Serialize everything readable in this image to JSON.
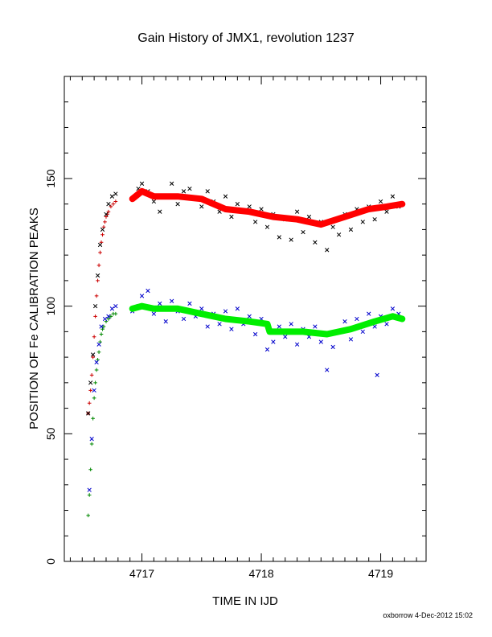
{
  "chart_data": {
    "type": "scatter",
    "title": "Gain History of JMX1, revolution 1237",
    "xlabel": "TIME IN IJD",
    "ylabel": "POSITION OF Fe CALIBRATION PEAKS",
    "xlim": [
      4716.35,
      4719.38
    ],
    "ylim": [
      0,
      190
    ],
    "x_ticks": [
      4717,
      4718,
      4719
    ],
    "y_ticks": [
      0,
      50,
      100,
      150
    ],
    "grid": false,
    "footer": "oxborrow 4-Dec-2012 15:02",
    "series": [
      {
        "color": "#cc0000",
        "marker": "plus",
        "points": [
          [
            4716.55,
            58
          ],
          [
            4716.56,
            62
          ],
          [
            4716.57,
            67
          ],
          [
            4716.58,
            73
          ],
          [
            4716.59,
            80
          ],
          [
            4716.6,
            88
          ],
          [
            4716.61,
            96
          ],
          [
            4716.62,
            104
          ],
          [
            4716.63,
            110
          ],
          [
            4716.64,
            116
          ],
          [
            4716.65,
            121
          ],
          [
            4716.66,
            125
          ],
          [
            4716.67,
            128
          ],
          [
            4716.68,
            131
          ],
          [
            4716.69,
            133
          ],
          [
            4716.7,
            135
          ],
          [
            4716.71,
            136
          ],
          [
            4716.72,
            137
          ],
          [
            4716.74,
            139
          ],
          [
            4716.76,
            140
          ],
          [
            4716.78,
            141
          ]
        ]
      },
      {
        "color": "#000000",
        "marker": "cross",
        "points": [
          [
            4716.55,
            58
          ],
          [
            4716.57,
            70
          ],
          [
            4716.59,
            81
          ],
          [
            4716.61,
            100
          ],
          [
            4716.63,
            112
          ],
          [
            4716.65,
            124
          ],
          [
            4716.67,
            130
          ],
          [
            4716.7,
            136
          ],
          [
            4716.72,
            140
          ],
          [
            4716.75,
            143
          ],
          [
            4716.78,
            144
          ],
          [
            4716.92,
            142
          ],
          [
            4716.97,
            146
          ],
          [
            4717.0,
            148
          ],
          [
            4717.05,
            145
          ],
          [
            4717.1,
            141
          ],
          [
            4717.15,
            137
          ],
          [
            4717.2,
            143
          ],
          [
            4717.25,
            148
          ],
          [
            4717.3,
            140
          ],
          [
            4717.35,
            145
          ],
          [
            4717.4,
            146
          ],
          [
            4717.45,
            142
          ],
          [
            4717.5,
            139
          ],
          [
            4717.55,
            145
          ],
          [
            4717.6,
            141
          ],
          [
            4717.65,
            137
          ],
          [
            4717.7,
            143
          ],
          [
            4717.75,
            135
          ],
          [
            4717.8,
            140
          ],
          [
            4717.85,
            137
          ],
          [
            4717.9,
            139
          ],
          [
            4717.95,
            133
          ],
          [
            4718.0,
            138
          ],
          [
            4718.05,
            131
          ],
          [
            4718.1,
            136
          ],
          [
            4718.15,
            127
          ],
          [
            4718.2,
            134
          ],
          [
            4718.25,
            126
          ],
          [
            4718.3,
            137
          ],
          [
            4718.35,
            129
          ],
          [
            4718.4,
            135
          ],
          [
            4718.45,
            125
          ],
          [
            4718.5,
            133
          ],
          [
            4718.55,
            122
          ],
          [
            4718.6,
            131
          ],
          [
            4718.65,
            128
          ],
          [
            4718.7,
            136
          ],
          [
            4718.75,
            130
          ],
          [
            4718.8,
            138
          ],
          [
            4718.85,
            133
          ],
          [
            4718.9,
            139
          ],
          [
            4718.95,
            134
          ],
          [
            4719.0,
            141
          ],
          [
            4719.05,
            137
          ],
          [
            4719.1,
            143
          ],
          [
            4719.15,
            139
          ]
        ]
      },
      {
        "color": "#ff0000",
        "marker": "thick-line",
        "points": [
          [
            4716.92,
            142
          ],
          [
            4717.0,
            145
          ],
          [
            4717.1,
            143
          ],
          [
            4717.3,
            143
          ],
          [
            4717.5,
            142
          ],
          [
            4717.7,
            138
          ],
          [
            4717.9,
            137
          ],
          [
            4718.1,
            135
          ],
          [
            4718.3,
            134
          ],
          [
            4718.5,
            132
          ],
          [
            4718.7,
            135
          ],
          [
            4718.9,
            138
          ],
          [
            4719.05,
            139
          ],
          [
            4719.18,
            140
          ]
        ]
      },
      {
        "color": "#008800",
        "marker": "plus",
        "points": [
          [
            4716.55,
            18
          ],
          [
            4716.56,
            26
          ],
          [
            4716.57,
            36
          ],
          [
            4716.58,
            46
          ],
          [
            4716.59,
            56
          ],
          [
            4716.6,
            64
          ],
          [
            4716.61,
            70
          ],
          [
            4716.62,
            75
          ],
          [
            4716.63,
            79
          ],
          [
            4716.64,
            82
          ],
          [
            4716.65,
            86
          ],
          [
            4716.66,
            89
          ],
          [
            4716.67,
            91
          ],
          [
            4716.68,
            92
          ],
          [
            4716.7,
            94
          ],
          [
            4716.72,
            95
          ],
          [
            4716.74,
            96
          ],
          [
            4716.76,
            97
          ],
          [
            4716.78,
            97
          ]
        ]
      },
      {
        "color": "#0000cc",
        "marker": "cross",
        "points": [
          [
            4716.56,
            28
          ],
          [
            4716.58,
            48
          ],
          [
            4716.6,
            67
          ],
          [
            4716.62,
            78
          ],
          [
            4716.64,
            85
          ],
          [
            4716.66,
            92
          ],
          [
            4716.69,
            95
          ],
          [
            4716.72,
            96
          ],
          [
            4716.75,
            99
          ],
          [
            4716.78,
            100
          ],
          [
            4716.92,
            98
          ],
          [
            4716.97,
            100
          ],
          [
            4717.0,
            104
          ],
          [
            4717.05,
            106
          ],
          [
            4717.1,
            97
          ],
          [
            4717.15,
            101
          ],
          [
            4717.2,
            94
          ],
          [
            4717.25,
            102
          ],
          [
            4717.3,
            98
          ],
          [
            4717.35,
            95
          ],
          [
            4717.4,
            101
          ],
          [
            4717.45,
            96
          ],
          [
            4717.5,
            99
          ],
          [
            4717.55,
            92
          ],
          [
            4717.6,
            97
          ],
          [
            4717.65,
            93
          ],
          [
            4717.7,
            98
          ],
          [
            4717.75,
            91
          ],
          [
            4717.8,
            99
          ],
          [
            4717.85,
            93
          ],
          [
            4717.9,
            96
          ],
          [
            4717.95,
            89
          ],
          [
            4718.0,
            95
          ],
          [
            4718.05,
            83
          ],
          [
            4718.1,
            86
          ],
          [
            4718.15,
            92
          ],
          [
            4718.2,
            88
          ],
          [
            4718.25,
            93
          ],
          [
            4718.3,
            85
          ],
          [
            4718.35,
            91
          ],
          [
            4718.4,
            88
          ],
          [
            4718.45,
            92
          ],
          [
            4718.5,
            86
          ],
          [
            4718.55,
            75
          ],
          [
            4718.6,
            84
          ],
          [
            4718.65,
            90
          ],
          [
            4718.7,
            94
          ],
          [
            4718.75,
            87
          ],
          [
            4718.8,
            95
          ],
          [
            4718.85,
            90
          ],
          [
            4718.9,
            97
          ],
          [
            4718.95,
            92
          ],
          [
            4718.97,
            73
          ],
          [
            4719.0,
            96
          ],
          [
            4719.05,
            93
          ],
          [
            4719.1,
            99
          ],
          [
            4719.15,
            97
          ]
        ]
      },
      {
        "color": "#00ee00",
        "marker": "thick-line",
        "points": [
          [
            4716.92,
            99
          ],
          [
            4717.0,
            100
          ],
          [
            4717.1,
            99
          ],
          [
            4717.3,
            99
          ],
          [
            4717.5,
            97
          ],
          [
            4717.7,
            95
          ],
          [
            4717.9,
            94
          ],
          [
            4718.05,
            93
          ],
          [
            4718.07,
            90
          ],
          [
            4718.2,
            90
          ],
          [
            4718.35,
            90
          ],
          [
            4718.55,
            89
          ],
          [
            4718.75,
            91
          ],
          [
            4718.95,
            94
          ],
          [
            4719.1,
            96
          ],
          [
            4719.18,
            95
          ]
        ]
      }
    ]
  }
}
